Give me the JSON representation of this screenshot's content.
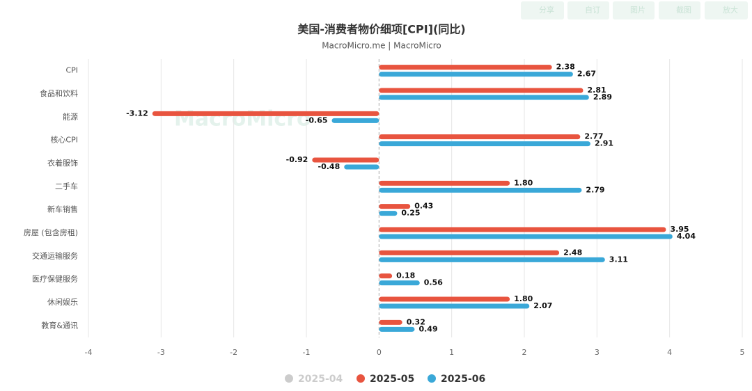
{
  "toolbar": [
    "分享",
    "自订",
    "图片",
    "截图",
    "放大"
  ],
  "watermark": "MacroMicro",
  "chart_data": {
    "type": "hbar",
    "title": "美国-消费者物价细项[CPI](同比)",
    "subtitle": "MacroMicro.me | MacroMicro",
    "categories": [
      "CPI",
      "食品和饮料",
      "能源",
      "核心CPI",
      "衣着服饰",
      "二手车",
      "新车销售",
      "房屋 (包含房租)",
      "交通运输服务",
      "医疗保健服务",
      "休闲娱乐",
      "教育&通讯"
    ],
    "series": [
      {
        "name": "2025-04",
        "color": "#cccccc",
        "hidden": true,
        "values": [
          null,
          null,
          null,
          null,
          null,
          null,
          null,
          null,
          null,
          null,
          null,
          null
        ]
      },
      {
        "name": "2025-05",
        "color": "#e8543f",
        "values": [
          2.38,
          2.81,
          -3.12,
          2.77,
          -0.92,
          1.8,
          0.43,
          3.95,
          2.48,
          0.18,
          1.8,
          0.32
        ],
        "value_labels": [
          "2.38",
          "2.81",
          "-3.12",
          "2.77",
          "-0.92",
          "1.80",
          "0.43",
          "3.95",
          "2.48",
          "0.18",
          "1.80",
          "0.32"
        ]
      },
      {
        "name": "2025-06",
        "color": "#3aa8d8",
        "values": [
          2.67,
          2.89,
          -0.65,
          2.91,
          -0.48,
          2.79,
          0.25,
          4.04,
          3.11,
          0.56,
          2.07,
          0.49
        ],
        "value_labels": [
          "2.67",
          "2.89",
          "-0.65",
          "2.91",
          "-0.48",
          "2.79",
          "0.25",
          "4.04",
          "3.11",
          "0.56",
          "2.07",
          "0.49"
        ]
      }
    ],
    "xlim": [
      -4,
      5
    ],
    "xticks": [
      -4,
      -3,
      -2,
      -1,
      0,
      1,
      2,
      3,
      4,
      5
    ],
    "grid": true
  }
}
